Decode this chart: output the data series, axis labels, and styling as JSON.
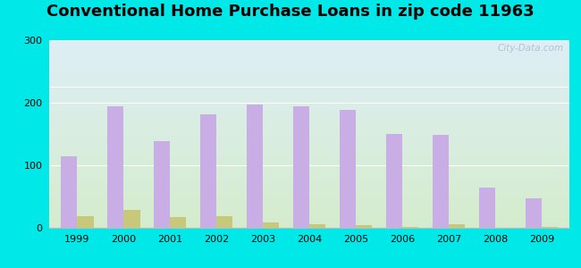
{
  "title": "Conventional Home Purchase Loans in zip code 11963",
  "years": [
    1999,
    2000,
    2001,
    2002,
    2003,
    2004,
    2005,
    2006,
    2007,
    2008,
    2009
  ],
  "hmda": [
    115,
    195,
    138,
    182,
    197,
    194,
    189,
    150,
    148,
    65,
    47
  ],
  "pmic": [
    18,
    29,
    17,
    18,
    8,
    6,
    5,
    2,
    6,
    0,
    2
  ],
  "hmda_color": "#c9aee5",
  "pmic_color": "#c8c87a",
  "ylim": [
    0,
    300
  ],
  "yticks": [
    0,
    100,
    200,
    300
  ],
  "bar_width": 0.35,
  "bg_color_top": "#ddeef5",
  "bg_color_bottom": "#d4eccc",
  "outer_bg": "#00e8e8",
  "title_fontsize": 13,
  "legend_fontsize": 9,
  "watermark": "City-Data.com"
}
